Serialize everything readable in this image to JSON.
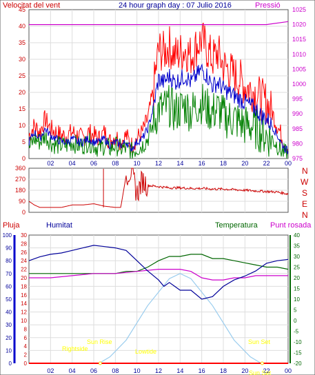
{
  "header": {
    "wind_label": "Velocitat del vent",
    "title": "24 hour graph day : 07 Julio 2016",
    "pressure_label": "Pressió"
  },
  "direction_labels": [
    "N",
    "W",
    "S",
    "E",
    "N"
  ],
  "lower_header": {
    "rain_label": "Pluja",
    "humidity_label": "Humitat",
    "temperature_label": "Temperatura",
    "dew_label": "Punt rosada"
  },
  "sun_labels": {
    "sunrise": "Sun Rise",
    "sunset": "Sun Set",
    "rightside": "Rightside",
    "lowtide": "Lowtide",
    "sunset2": "Sun Set"
  },
  "colors": {
    "wind_gust": "#ff0000",
    "wind_avg": "#0000cc",
    "wind_low": "#008000",
    "pressure": "#cc00cc",
    "direction": "#cc0000",
    "humidity": "#000099",
    "temperature": "#006600",
    "dew": "#cc00cc",
    "solar": "#99ccee",
    "sun_text": "#ffff00",
    "rain": "#ff0000"
  },
  "chart_data": [
    {
      "type": "line",
      "name": "wind",
      "x_ticks": [
        "02",
        "04",
        "06",
        "08",
        "10",
        "12",
        "14",
        "16",
        "18",
        "20",
        "22",
        "00"
      ],
      "left_axis": {
        "ticks": [
          0,
          5,
          10,
          15,
          20,
          25,
          30,
          35,
          40,
          45
        ],
        "ylim": [
          0,
          45
        ]
      },
      "right_axis": {
        "ticks": [
          975,
          980,
          985,
          990,
          995,
          1000,
          1005,
          1010,
          1015,
          1020,
          1025
        ],
        "ylim": [
          975,
          1025
        ]
      },
      "gust_key": [
        [
          0,
          7
        ],
        [
          0.5,
          10
        ],
        [
          1,
          8
        ],
        [
          1.5,
          12
        ],
        [
          2,
          9
        ],
        [
          2.5,
          8
        ],
        [
          3,
          7
        ],
        [
          3.5,
          7
        ],
        [
          4,
          8
        ],
        [
          4.5,
          7
        ],
        [
          5,
          6
        ],
        [
          5.5,
          8
        ],
        [
          6,
          7
        ],
        [
          6.5,
          6
        ],
        [
          7,
          8
        ],
        [
          7.5,
          5
        ],
        [
          8,
          7
        ],
        [
          8.5,
          5
        ],
        [
          9,
          7
        ],
        [
          9.5,
          4
        ],
        [
          10,
          6
        ],
        [
          10.5,
          8
        ],
        [
          11,
          12
        ],
        [
          11.5,
          20
        ],
        [
          12,
          33
        ],
        [
          12.5,
          32
        ],
        [
          13,
          34
        ],
        [
          13.5,
          31
        ],
        [
          14,
          32
        ],
        [
          14.5,
          33
        ],
        [
          15,
          31
        ],
        [
          15.5,
          34
        ],
        [
          16,
          36
        ],
        [
          16.5,
          33
        ],
        [
          17,
          30
        ],
        [
          17.5,
          32
        ],
        [
          18,
          28
        ],
        [
          18.5,
          27
        ],
        [
          19,
          25
        ],
        [
          19.5,
          24
        ],
        [
          20,
          22
        ],
        [
          20.5,
          21
        ],
        [
          21,
          20
        ],
        [
          21.5,
          18
        ],
        [
          22,
          17
        ],
        [
          22.5,
          14
        ],
        [
          23,
          10
        ],
        [
          23.5,
          6
        ],
        [
          24,
          3
        ]
      ],
      "avg_key": [
        [
          0,
          5
        ],
        [
          0.5,
          8
        ],
        [
          1,
          6
        ],
        [
          1.5,
          9
        ],
        [
          2,
          7
        ],
        [
          2.5,
          6
        ],
        [
          3,
          5
        ],
        [
          3.5,
          5
        ],
        [
          4,
          6
        ],
        [
          4.5,
          5
        ],
        [
          5,
          5
        ],
        [
          5.5,
          6
        ],
        [
          6,
          5
        ],
        [
          6.5,
          5
        ],
        [
          7,
          6
        ],
        [
          7.5,
          4
        ],
        [
          8,
          5
        ],
        [
          8.5,
          4
        ],
        [
          9,
          5
        ],
        [
          9.5,
          3
        ],
        [
          10,
          5
        ],
        [
          10.5,
          6
        ],
        [
          11,
          9
        ],
        [
          11.5,
          15
        ],
        [
          12,
          24
        ],
        [
          12.5,
          23
        ],
        [
          13,
          25
        ],
        [
          13.5,
          23
        ],
        [
          14,
          24
        ],
        [
          14.5,
          25
        ],
        [
          15,
          23
        ],
        [
          15.5,
          25
        ],
        [
          16,
          27
        ],
        [
          16.5,
          25
        ],
        [
          17,
          22
        ],
        [
          17.5,
          23
        ],
        [
          18,
          21
        ],
        [
          18.5,
          20
        ],
        [
          19,
          19
        ],
        [
          19.5,
          18
        ],
        [
          20,
          17
        ],
        [
          20.5,
          16
        ],
        [
          21,
          15
        ],
        [
          21.5,
          13
        ],
        [
          22,
          12
        ],
        [
          22.5,
          10
        ],
        [
          23,
          7
        ],
        [
          23.5,
          4
        ],
        [
          24,
          2
        ]
      ],
      "low_key": [
        [
          0,
          3
        ],
        [
          0.5,
          6
        ],
        [
          1,
          5
        ],
        [
          1.5,
          7
        ],
        [
          2,
          5
        ],
        [
          2.5,
          4
        ],
        [
          3,
          4
        ],
        [
          3.5,
          4
        ],
        [
          4,
          5
        ],
        [
          4.5,
          4
        ],
        [
          5,
          4
        ],
        [
          5.5,
          5
        ],
        [
          6,
          4
        ],
        [
          6.5,
          3
        ],
        [
          7,
          4
        ],
        [
          7.5,
          3
        ],
        [
          8,
          4
        ],
        [
          8.5,
          3
        ],
        [
          9,
          3
        ],
        [
          9.5,
          2
        ],
        [
          10,
          3
        ],
        [
          10.5,
          4
        ],
        [
          11,
          6
        ],
        [
          11.5,
          10
        ],
        [
          12,
          15
        ],
        [
          12.5,
          15
        ],
        [
          13,
          16
        ],
        [
          13.5,
          14
        ],
        [
          14,
          15
        ],
        [
          14.5,
          16
        ],
        [
          15,
          14
        ],
        [
          15.5,
          16
        ],
        [
          16,
          17
        ],
        [
          16.5,
          15
        ],
        [
          17,
          14
        ],
        [
          17.5,
          15
        ],
        [
          18,
          13
        ],
        [
          18.5,
          12
        ],
        [
          19,
          12
        ],
        [
          19.5,
          11
        ],
        [
          20,
          10
        ],
        [
          20.5,
          10
        ],
        [
          21,
          9
        ],
        [
          21.5,
          8
        ],
        [
          22,
          7
        ],
        [
          22.5,
          6
        ],
        [
          23,
          4
        ],
        [
          23.5,
          2
        ],
        [
          24,
          1
        ]
      ],
      "pressure": [
        [
          0,
          1020
        ],
        [
          4,
          1020
        ],
        [
          8,
          1020
        ],
        [
          12,
          1020
        ],
        [
          16,
          1020
        ],
        [
          20,
          1020
        ],
        [
          22,
          1020
        ],
        [
          24,
          1021
        ]
      ]
    },
    {
      "type": "line",
      "name": "direction",
      "left_axis": {
        "ticks": [
          0,
          45,
          90,
          135,
          180,
          225,
          270,
          315,
          360
        ],
        "ylim": [
          0,
          360
        ]
      },
      "values": [
        [
          0,
          90
        ],
        [
          0.5,
          60
        ],
        [
          1,
          40
        ],
        [
          2,
          40
        ],
        [
          3,
          40
        ],
        [
          4,
          60
        ],
        [
          5,
          60
        ],
        [
          6,
          70
        ],
        [
          6.5,
          60
        ],
        [
          7,
          50
        ],
        [
          8,
          40
        ],
        [
          8.5,
          40
        ],
        [
          9,
          300
        ],
        [
          9.5,
          340
        ],
        [
          10,
          150
        ],
        [
          10.5,
          260
        ],
        [
          11,
          220
        ],
        [
          12,
          210
        ],
        [
          13,
          200
        ],
        [
          14,
          200
        ],
        [
          15,
          195
        ],
        [
          16,
          195
        ],
        [
          17,
          190
        ],
        [
          18,
          190
        ],
        [
          19,
          185
        ],
        [
          20,
          180
        ],
        [
          21,
          175
        ],
        [
          22,
          170
        ],
        [
          23,
          165
        ],
        [
          24,
          150
        ]
      ]
    },
    {
      "type": "line",
      "name": "climate",
      "x_ticks": [
        "02",
        "04",
        "06",
        "08",
        "10",
        "12",
        "14",
        "16",
        "18",
        "20",
        "22",
        "00"
      ],
      "rain_axis": {
        "ticks": [
          0,
          2,
          4,
          6,
          8,
          10,
          12,
          14,
          16,
          18,
          20,
          22,
          24,
          26,
          28,
          30
        ],
        "ylim": [
          0,
          30
        ]
      },
      "humidity_axis": {
        "ticks": [
          0,
          10,
          20,
          30,
          40,
          50,
          60,
          70,
          80,
          90,
          100
        ],
        "ylim": [
          0,
          100
        ]
      },
      "temperature_axis": {
        "ticks": [
          -20,
          -15,
          -10,
          -5,
          0,
          5,
          10,
          15,
          20,
          25,
          30,
          35,
          40
        ],
        "ylim": [
          -20,
          40
        ]
      },
      "humidity": [
        [
          0,
          80
        ],
        [
          1,
          83
        ],
        [
          2,
          85
        ],
        [
          3,
          86
        ],
        [
          4,
          88
        ],
        [
          5,
          90
        ],
        [
          6,
          92
        ],
        [
          7,
          91
        ],
        [
          8,
          90
        ],
        [
          9,
          88
        ],
        [
          10,
          80
        ],
        [
          11,
          72
        ],
        [
          12,
          65
        ],
        [
          12.5,
          60
        ],
        [
          13,
          63
        ],
        [
          13.5,
          60
        ],
        [
          14,
          57
        ],
        [
          15,
          57
        ],
        [
          16,
          50
        ],
        [
          17,
          52
        ],
        [
          18,
          60
        ],
        [
          19,
          65
        ],
        [
          20,
          68
        ],
        [
          21,
          72
        ],
        [
          22,
          78
        ],
        [
          23,
          80
        ],
        [
          24,
          81
        ]
      ],
      "temperature": [
        [
          0,
          22
        ],
        [
          1,
          22
        ],
        [
          2,
          22
        ],
        [
          3,
          22
        ],
        [
          4,
          22
        ],
        [
          5,
          22
        ],
        [
          6,
          22
        ],
        [
          7,
          22
        ],
        [
          8,
          22
        ],
        [
          9,
          23
        ],
        [
          10,
          23
        ],
        [
          11,
          25
        ],
        [
          12,
          28
        ],
        [
          13,
          30
        ],
        [
          14,
          30
        ],
        [
          15,
          31
        ],
        [
          16,
          31
        ],
        [
          17,
          29
        ],
        [
          18,
          29
        ],
        [
          19,
          28
        ],
        [
          20,
          27
        ],
        [
          21,
          26
        ],
        [
          22,
          25
        ],
        [
          23,
          25
        ],
        [
          24,
          24
        ]
      ],
      "dew": [
        [
          0,
          20
        ],
        [
          2,
          20
        ],
        [
          4,
          21
        ],
        [
          6,
          22
        ],
        [
          8,
          22
        ],
        [
          10,
          23
        ],
        [
          12,
          24
        ],
        [
          13,
          24
        ],
        [
          14,
          24
        ],
        [
          15,
          23
        ],
        [
          16,
          20
        ],
        [
          17,
          19
        ],
        [
          18,
          19
        ],
        [
          19,
          20
        ],
        [
          20,
          20
        ],
        [
          21,
          21
        ],
        [
          22,
          21
        ],
        [
          23,
          21
        ],
        [
          24,
          21
        ]
      ],
      "solar": [
        [
          6.5,
          0
        ],
        [
          7.5,
          5
        ],
        [
          9,
          18
        ],
        [
          11,
          45
        ],
        [
          13,
          66
        ],
        [
          14,
          70
        ],
        [
          15,
          66
        ],
        [
          17,
          45
        ],
        [
          19,
          18
        ],
        [
          20.5,
          5
        ],
        [
          21.5,
          0
        ]
      ],
      "rain": [
        [
          0,
          0
        ],
        [
          24,
          0
        ]
      ]
    }
  ]
}
